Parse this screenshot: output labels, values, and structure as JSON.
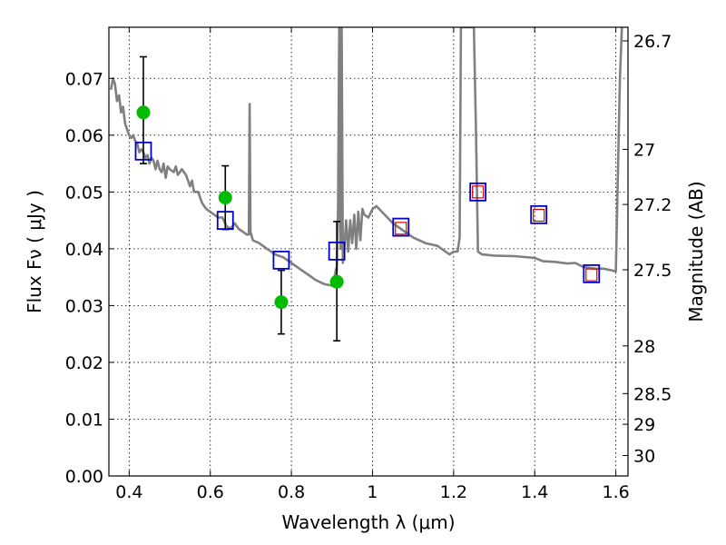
{
  "chart_data": {
    "type": "scatter",
    "title": "",
    "xlabel": "Wavelength  λ (μm)",
    "ylabel": "Flux  Fν  ( μJy )",
    "ylabel_right": "Magnitude (AB)",
    "xlim": [
      0.35,
      1.63
    ],
    "ylim": [
      0.0,
      0.079
    ],
    "grid": true,
    "x_ticks": [
      {
        "value": 0.4,
        "label": "0.4"
      },
      {
        "value": 0.6,
        "label": "0.6"
      },
      {
        "value": 0.8,
        "label": "0.8"
      },
      {
        "value": 1.0,
        "label": "1"
      },
      {
        "value": 1.2,
        "label": "1.2"
      },
      {
        "value": 1.4,
        "label": "1.4"
      },
      {
        "value": 1.6,
        "label": "1.6"
      }
    ],
    "y_ticks": [
      {
        "value": 0.0,
        "label": "0.00"
      },
      {
        "value": 0.01,
        "label": "0.01"
      },
      {
        "value": 0.02,
        "label": "0.02"
      },
      {
        "value": 0.03,
        "label": "0.03"
      },
      {
        "value": 0.04,
        "label": "0.04"
      },
      {
        "value": 0.05,
        "label": "0.05"
      },
      {
        "value": 0.06,
        "label": "0.06"
      },
      {
        "value": 0.07,
        "label": "0.07"
      }
    ],
    "right_ticks": [
      {
        "flux": 0.0766,
        "label": "26.7"
      },
      {
        "flux": 0.0575,
        "label": "27"
      },
      {
        "flux": 0.0478,
        "label": "27.2"
      },
      {
        "flux": 0.0363,
        "label": "27.5"
      },
      {
        "flux": 0.0229,
        "label": "28"
      },
      {
        "flux": 0.0145,
        "label": "28.5"
      },
      {
        "flux": 0.0091,
        "label": "29"
      },
      {
        "flux": 0.0036,
        "label": "30"
      }
    ],
    "series": [
      {
        "kind": "spectrum",
        "color": "#808080",
        "points": [
          [
            0.355,
            0.068
          ],
          [
            0.36,
            0.07
          ],
          [
            0.365,
            0.069
          ],
          [
            0.37,
            0.066
          ],
          [
            0.375,
            0.067
          ],
          [
            0.38,
            0.064
          ],
          [
            0.385,
            0.065
          ],
          [
            0.39,
            0.062
          ],
          [
            0.395,
            0.061
          ],
          [
            0.4,
            0.06
          ],
          [
            0.405,
            0.0595
          ],
          [
            0.41,
            0.06
          ],
          [
            0.415,
            0.059
          ],
          [
            0.42,
            0.0585
          ],
          [
            0.425,
            0.057
          ],
          [
            0.43,
            0.0575
          ],
          [
            0.435,
            0.057
          ],
          [
            0.44,
            0.056
          ],
          [
            0.445,
            0.0565
          ],
          [
            0.45,
            0.055
          ],
          [
            0.455,
            0.056
          ],
          [
            0.46,
            0.0555
          ],
          [
            0.465,
            0.054
          ],
          [
            0.47,
            0.0555
          ],
          [
            0.475,
            0.054
          ],
          [
            0.48,
            0.0535
          ],
          [
            0.485,
            0.055
          ],
          [
            0.49,
            0.0525
          ],
          [
            0.495,
            0.0545
          ],
          [
            0.5,
            0.054
          ],
          [
            0.51,
            0.0535
          ],
          [
            0.515,
            0.0545
          ],
          [
            0.52,
            0.053
          ],
          [
            0.53,
            0.054
          ],
          [
            0.54,
            0.053
          ],
          [
            0.55,
            0.051
          ],
          [
            0.555,
            0.052
          ],
          [
            0.56,
            0.05
          ],
          [
            0.57,
            0.05
          ],
          [
            0.58,
            0.048
          ],
          [
            0.59,
            0.047
          ],
          [
            0.6,
            0.0465
          ],
          [
            0.61,
            0.046
          ],
          [
            0.62,
            0.0455
          ],
          [
            0.63,
            0.0455
          ],
          [
            0.64,
            0.044
          ],
          [
            0.65,
            0.0435
          ],
          [
            0.66,
            0.0445
          ],
          [
            0.67,
            0.0435
          ],
          [
            0.68,
            0.043
          ],
          [
            0.69,
            0.0425
          ],
          [
            0.695,
            0.0425
          ],
          [
            0.697,
            0.0655
          ],
          [
            0.699,
            0.043
          ],
          [
            0.705,
            0.0415
          ],
          [
            0.72,
            0.041
          ],
          [
            0.74,
            0.04
          ],
          [
            0.76,
            0.039
          ],
          [
            0.78,
            0.0385
          ],
          [
            0.8,
            0.0375
          ],
          [
            0.82,
            0.0365
          ],
          [
            0.84,
            0.0355
          ],
          [
            0.86,
            0.0345
          ],
          [
            0.88,
            0.0338
          ],
          [
            0.9,
            0.0335
          ],
          [
            0.905,
            0.0345
          ],
          [
            0.91,
            0.0365
          ],
          [
            0.912,
            0.036
          ],
          [
            0.915,
            0.047
          ],
          [
            0.918,
            0.079
          ],
          [
            0.921,
            0.04
          ],
          [
            0.924,
            0.079
          ],
          [
            0.927,
            0.0375
          ],
          [
            0.93,
            0.0395
          ],
          [
            0.935,
            0.045
          ],
          [
            0.94,
            0.0395
          ],
          [
            0.945,
            0.045
          ],
          [
            0.95,
            0.041
          ],
          [
            0.955,
            0.046
          ],
          [
            0.96,
            0.04
          ],
          [
            0.965,
            0.0465
          ],
          [
            0.97,
            0.0415
          ],
          [
            0.975,
            0.047
          ],
          [
            0.98,
            0.046
          ],
          [
            0.99,
            0.0455
          ],
          [
            1.0,
            0.047
          ],
          [
            1.01,
            0.0475
          ],
          [
            1.03,
            0.046
          ],
          [
            1.05,
            0.0445
          ],
          [
            1.07,
            0.0435
          ],
          [
            1.1,
            0.042
          ],
          [
            1.13,
            0.041
          ],
          [
            1.16,
            0.0405
          ],
          [
            1.18,
            0.0395
          ],
          [
            1.19,
            0.039
          ],
          [
            1.2,
            0.0395
          ],
          [
            1.21,
            0.0395
          ],
          [
            1.215,
            0.042
          ],
          [
            1.218,
            0.079
          ],
          [
            1.23,
            0.079
          ],
          [
            1.25,
            0.079
          ],
          [
            1.255,
            0.0615
          ],
          [
            1.26,
            0.0395
          ],
          [
            1.27,
            0.039
          ],
          [
            1.3,
            0.0388
          ],
          [
            1.35,
            0.0387
          ],
          [
            1.4,
            0.0384
          ],
          [
            1.42,
            0.0378
          ],
          [
            1.45,
            0.0377
          ],
          [
            1.48,
            0.0374
          ],
          [
            1.5,
            0.0375
          ],
          [
            1.52,
            0.0368
          ],
          [
            1.55,
            0.0365
          ],
          [
            1.57,
            0.0365
          ],
          [
            1.59,
            0.0362
          ],
          [
            1.6,
            0.036
          ],
          [
            1.61,
            0.07
          ],
          [
            1.615,
            0.079
          ]
        ]
      },
      {
        "kind": "observed",
        "color": "#00bb00",
        "points": [
          {
            "x": 0.435,
            "y": 0.064,
            "lo": 0.055,
            "hi": 0.0738
          },
          {
            "x": 0.637,
            "y": 0.049,
            "lo": 0.0434,
            "hi": 0.0546
          },
          {
            "x": 0.775,
            "y": 0.0306,
            "lo": 0.025,
            "hi": 0.0362
          },
          {
            "x": 0.912,
            "y": 0.0342,
            "lo": 0.0238,
            "hi": 0.0448
          }
        ]
      },
      {
        "kind": "model",
        "color": "#0000cc",
        "points": [
          {
            "x": 0.435,
            "y": 0.0572
          },
          {
            "x": 0.637,
            "y": 0.045
          },
          {
            "x": 0.775,
            "y": 0.038
          },
          {
            "x": 0.912,
            "y": 0.0396
          },
          {
            "x": 1.07,
            "y": 0.0438
          },
          {
            "x": 1.26,
            "y": 0.05
          },
          {
            "x": 1.41,
            "y": 0.046
          },
          {
            "x": 1.54,
            "y": 0.0356
          }
        ]
      },
      {
        "kind": "model-ir",
        "color": "#dd0000",
        "points": [
          {
            "x": 1.07,
            "y": 0.0436
          },
          {
            "x": 1.26,
            "y": 0.05
          },
          {
            "x": 1.41,
            "y": 0.0459
          },
          {
            "x": 1.54,
            "y": 0.0354
          }
        ]
      }
    ]
  }
}
